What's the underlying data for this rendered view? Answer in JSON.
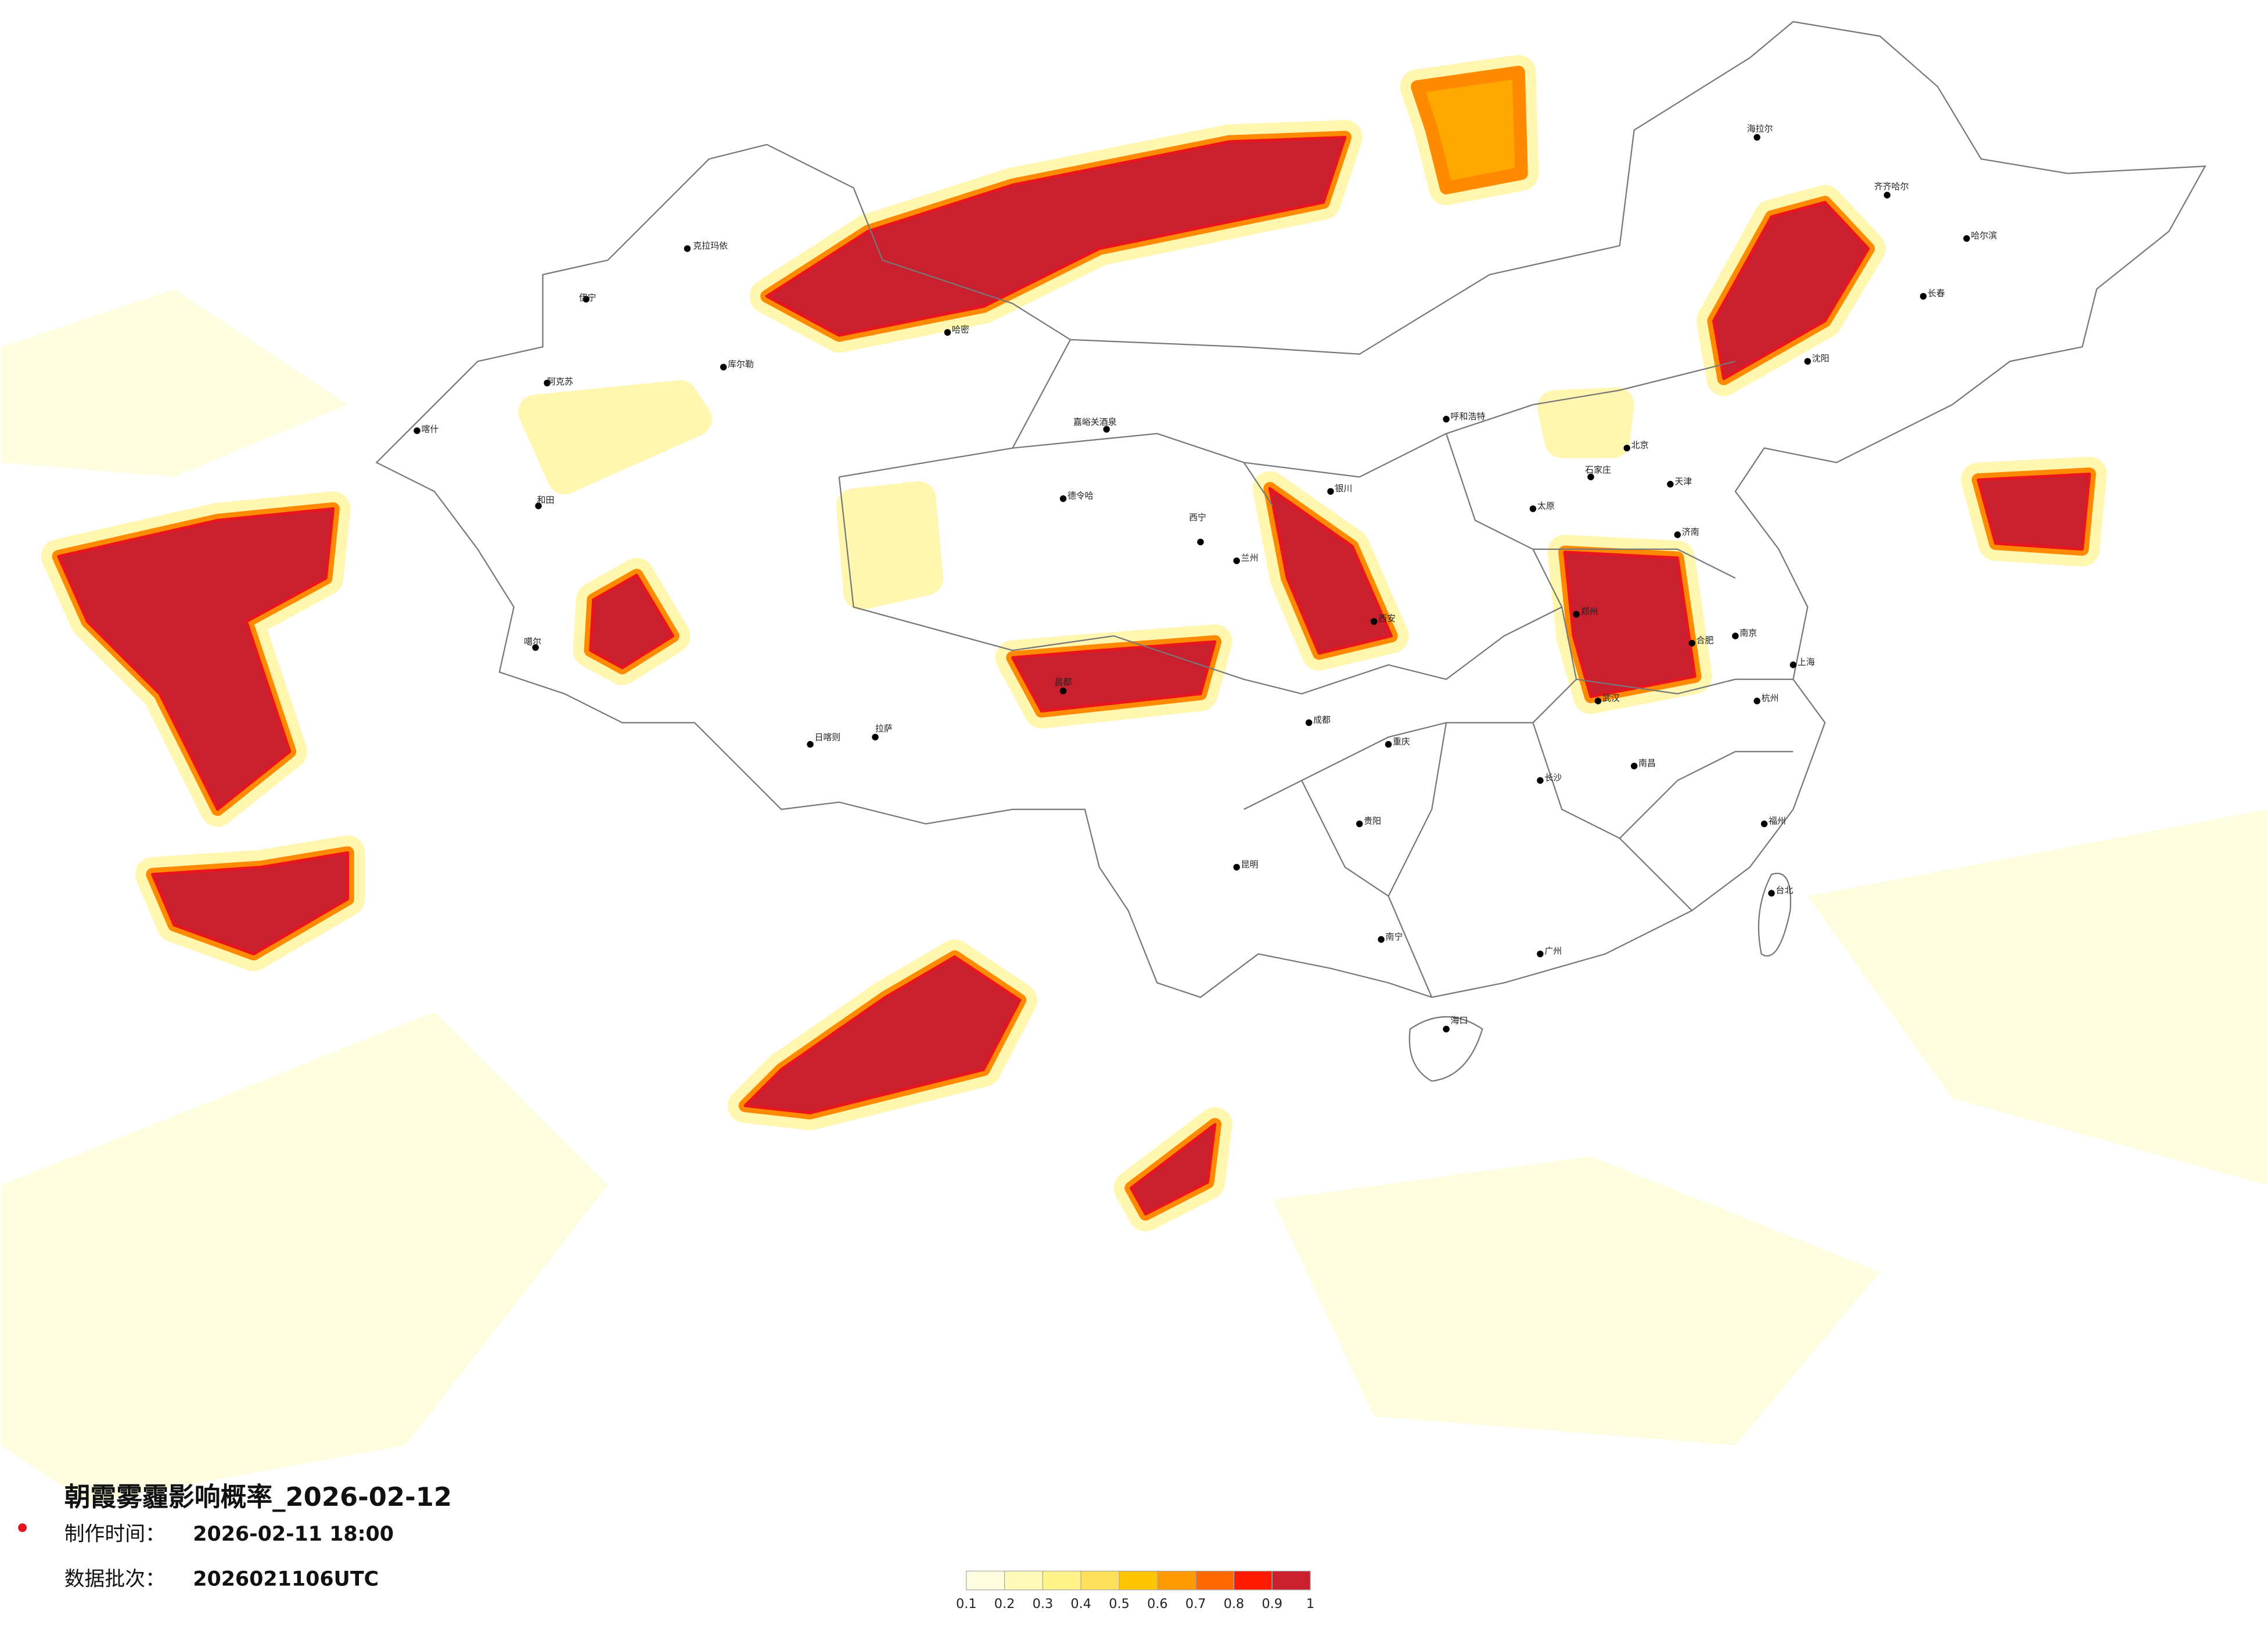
{
  "header": {
    "title": "朝霞雾霾影响概率_2026-02-12",
    "made_time_label": "制作时间：",
    "made_time": "2026-02-11 18:00",
    "batch_label": "数据批次：",
    "batch": "2026021106UTC"
  },
  "legend": {
    "colors": [
      "#fffde0",
      "#fffaba",
      "#fff38a",
      "#ffe05a",
      "#ffc400",
      "#ff9a00",
      "#ff6a00",
      "#ff1a00",
      "#c8202f"
    ],
    "ticks": [
      0.1,
      0.2,
      0.3,
      0.4,
      0.5,
      0.6,
      0.7,
      0.8,
      0.9,
      1
    ]
  },
  "cities": [
    "克拉玛依",
    "伊宁",
    "阿克苏",
    "喀什",
    "和田",
    "库尔勒",
    "哈密",
    "嘉峪关酒泉",
    "德令哈",
    "噶尔",
    "日喀则",
    "拉萨",
    "昌都",
    "西宁",
    "兰州",
    "银川",
    "呼和浩特",
    "北京",
    "天津",
    "石家庄",
    "太原",
    "济南",
    "郑州",
    "西安",
    "成都",
    "重庆",
    "贵阳",
    "昆明",
    "南宁",
    "广州",
    "海口",
    "长沙",
    "武汉",
    "南昌",
    "合肥",
    "南京",
    "上海",
    "杭州",
    "福州",
    "台北",
    "沈阳",
    "长春",
    "哈尔滨",
    "海拉尔",
    "齐齐哈尔"
  ]
}
